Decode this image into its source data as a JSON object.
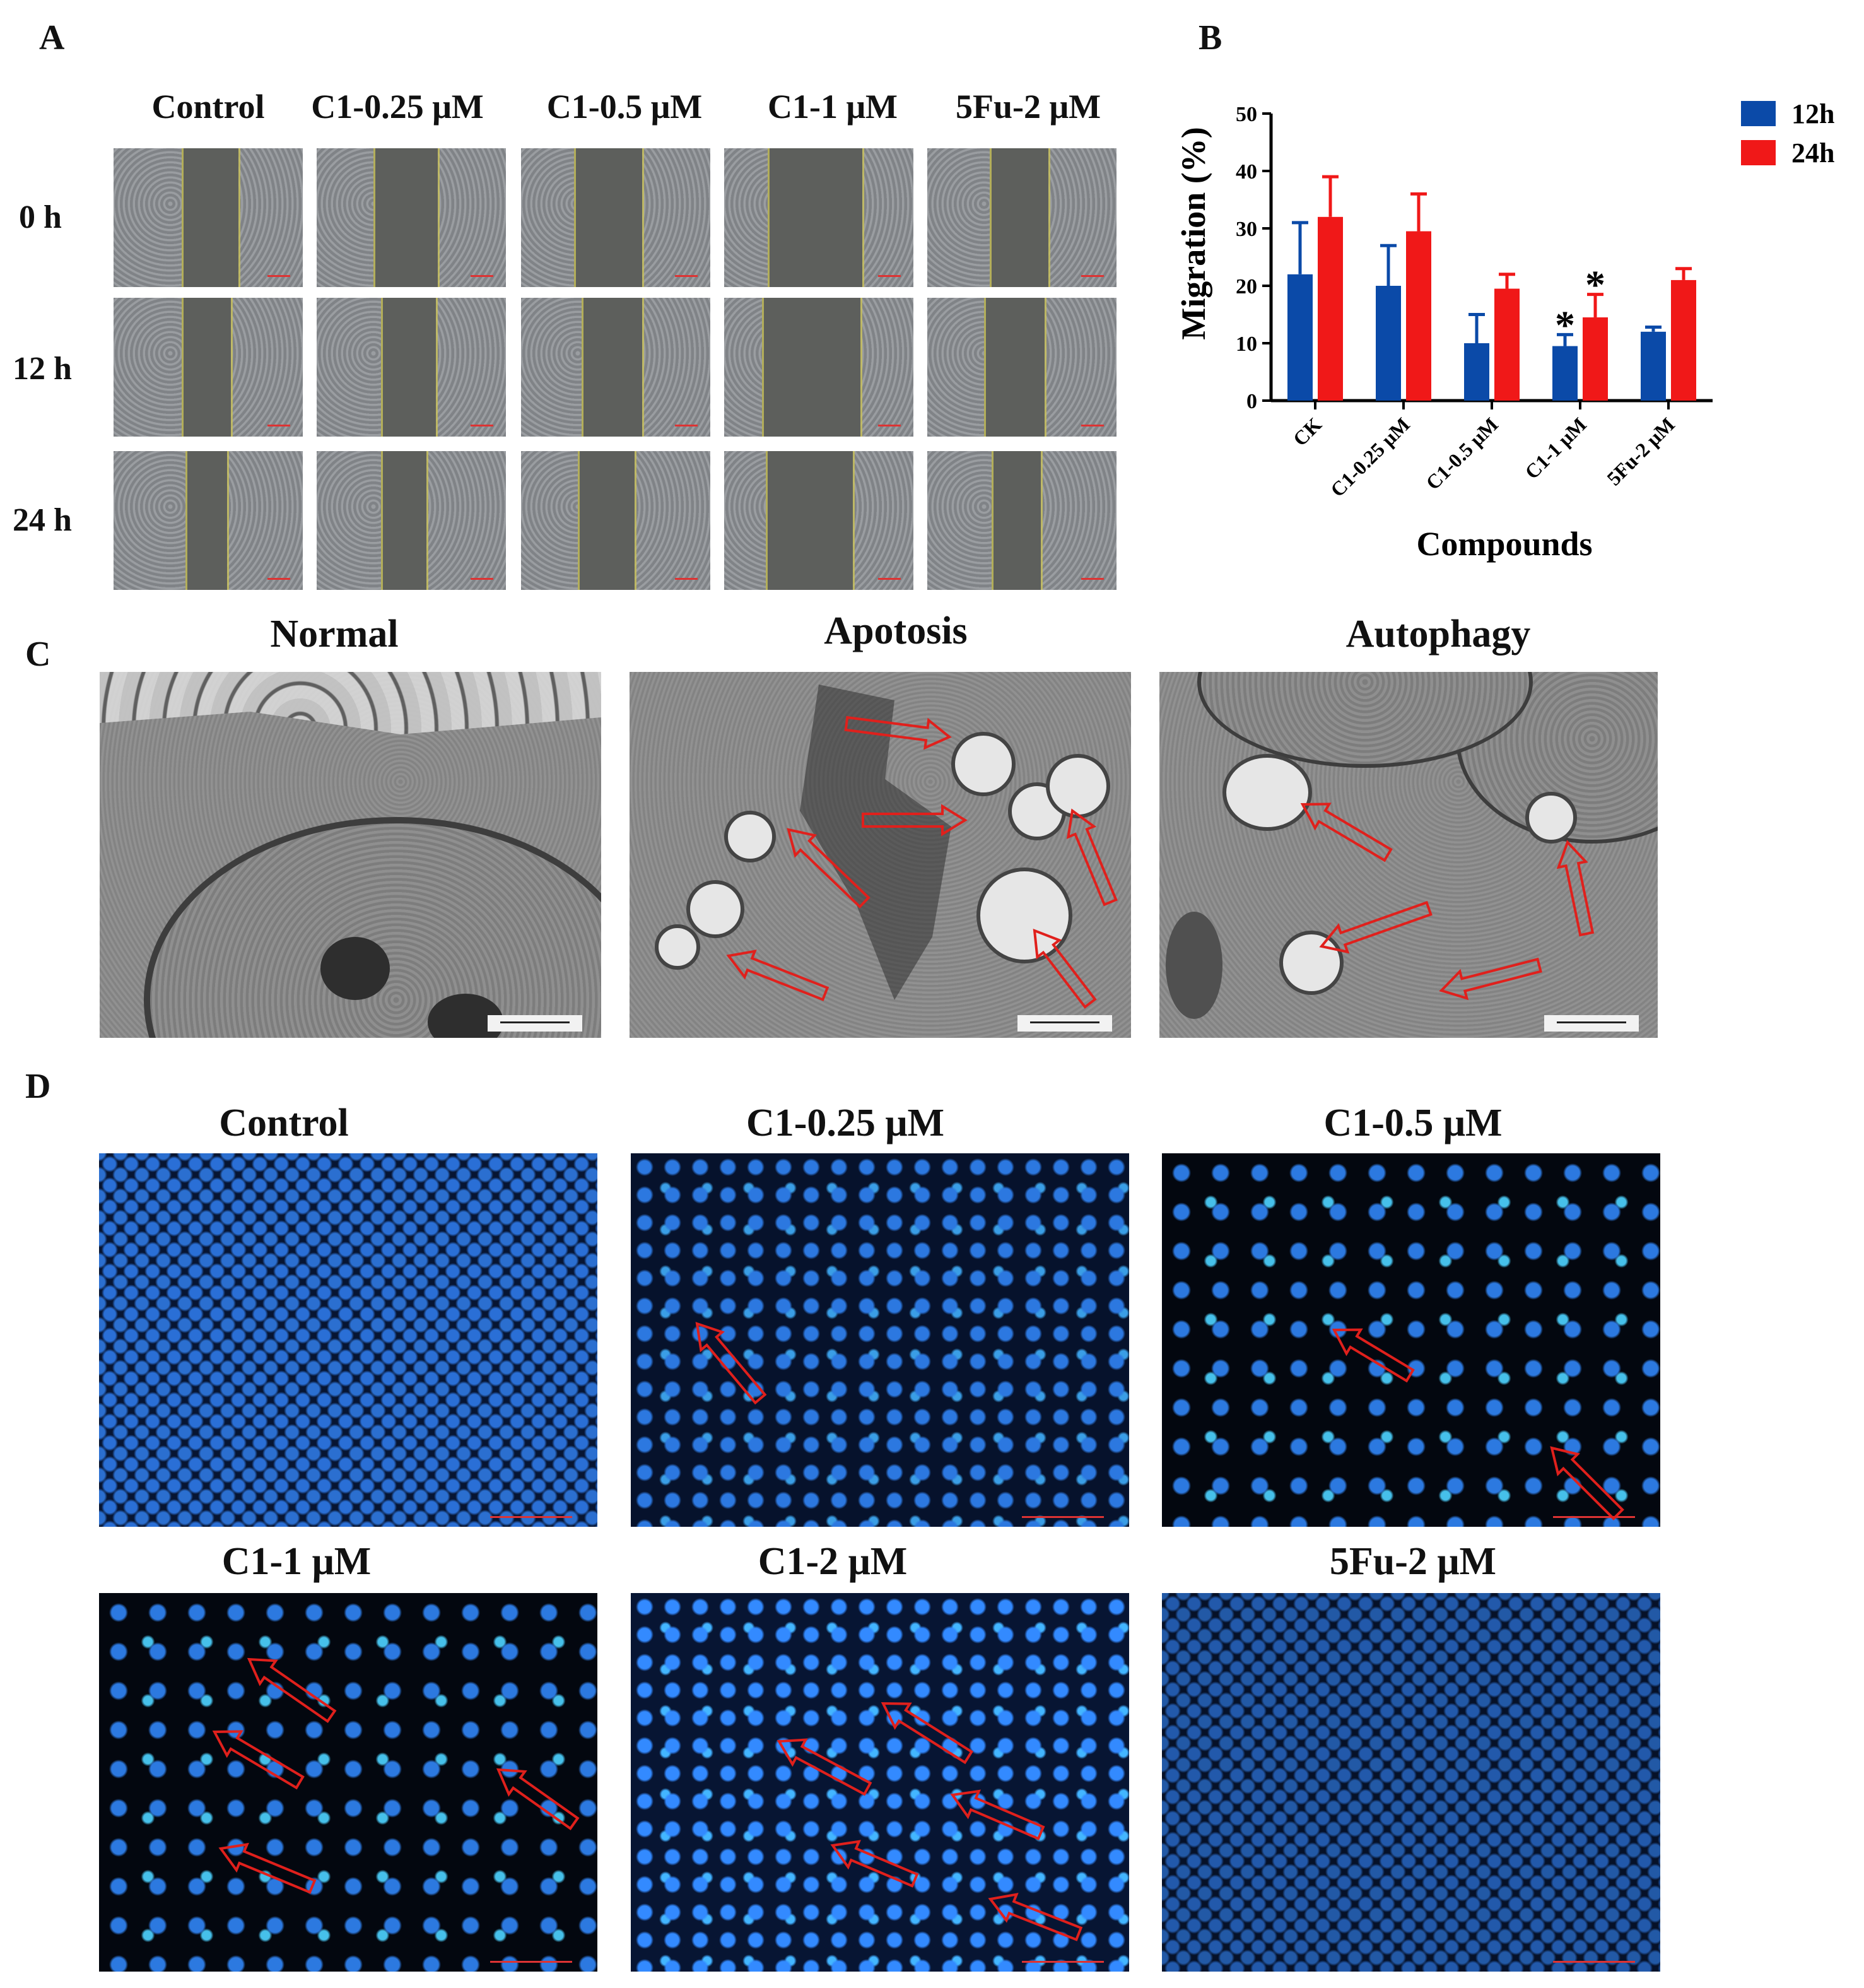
{
  "panels": {
    "a": "A",
    "b": "B",
    "c": "C",
    "d": "D"
  },
  "panel_a": {
    "columns": [
      "Control",
      "C1-0.25 μM",
      "C1-0.5 μM",
      "C1-1 μM",
      "5Fu-2 μM"
    ],
    "rows": [
      "0 h",
      "12 h",
      "24 h"
    ]
  },
  "panel_c": {
    "titles": [
      "Normal",
      "Apotosis",
      "Autophagy"
    ]
  },
  "panel_d": {
    "titles": [
      "Control",
      "C1-0.25 μM",
      "C1-0.5 μM",
      "C1-1 μM",
      "C1-2 μM",
      "5Fu-2 μM"
    ]
  },
  "colors": {
    "series_12h": "#0b4aa8",
    "series_24h": "#f01818",
    "arrow": "#e0201c"
  },
  "chart_data": {
    "type": "bar",
    "title": "",
    "xlabel": "Compounds",
    "ylabel": "Migration (%)",
    "ylim": [
      0,
      50
    ],
    "yticks": [
      "0",
      "10",
      "20",
      "30",
      "40",
      "50"
    ],
    "categories": [
      "CK",
      "C1-0.25 μM",
      "C1-0.5 μM",
      "C1-1 μM",
      "5Fu-2 μM"
    ],
    "series": [
      {
        "name": "12h",
        "values": [
          22,
          20,
          10,
          9.5,
          12
        ],
        "errors": [
          9,
          7,
          5,
          2,
          0.8
        ]
      },
      {
        "name": "24h",
        "values": [
          32,
          29.5,
          19.5,
          14.5,
          21
        ],
        "errors": [
          7,
          6.5,
          2.5,
          4,
          2
        ]
      }
    ],
    "annotations": [
      {
        "text": "*",
        "category": "C1-1 μM",
        "series": "12h"
      },
      {
        "text": "*",
        "category": "C1-1 μM",
        "series": "24h"
      }
    ],
    "legend_position": "top-right",
    "grid": false
  }
}
